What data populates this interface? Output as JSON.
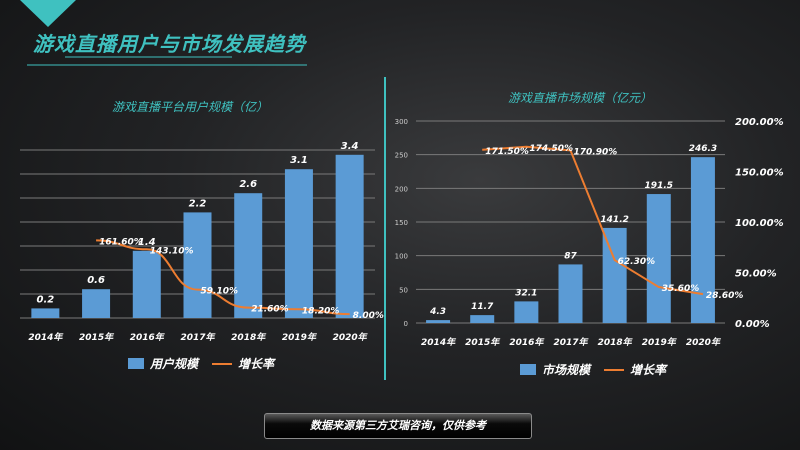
{
  "header": {
    "title": "游戏直播用户与市场发展趋势"
  },
  "footer": {
    "note": "数据来源第三方艾瑞咨询，仅供参考"
  },
  "colors": {
    "accent": "#3fc1c0",
    "bar": "#5b9bd5",
    "line": "#ed7d31"
  },
  "chart_data": [
    {
      "type": "bar",
      "title": "游戏直播平台用户规模（亿）",
      "categories": [
        "2014年",
        "2015年",
        "2016年",
        "2017年",
        "2018年",
        "2019年",
        "2020年"
      ],
      "series": [
        {
          "name": "用户规模",
          "type": "bar",
          "values": [
            0.2,
            0.6,
            1.4,
            2.2,
            2.6,
            3.1,
            3.4
          ],
          "labels": [
            "0.2",
            "0.6",
            "1.4",
            "2.2",
            "2.6",
            "3.1",
            "3.4"
          ]
        },
        {
          "name": "增长率",
          "type": "line",
          "axis": "secondary",
          "values": [
            null,
            161.6,
            143.1,
            59.1,
            21.6,
            18.2,
            8.0
          ],
          "labels": [
            "",
            "161.60%",
            "143.10%",
            "59.10%",
            "21.60%",
            "18.20%",
            "8.00%"
          ]
        }
      ],
      "ylim": [
        0,
        3.5
      ],
      "y2lim": [
        0,
        350
      ],
      "grid": true,
      "legend": "bottom"
    },
    {
      "type": "bar",
      "title": "游戏直播市场规模（亿元）",
      "categories": [
        "2014年",
        "2015年",
        "2016年",
        "2017年",
        "2018年",
        "2019年",
        "2020年"
      ],
      "series": [
        {
          "name": "市场规模",
          "type": "bar",
          "values": [
            4.3,
            11.7,
            32.1,
            87,
            141.2,
            191.5,
            246.3
          ],
          "labels": [
            "4.3",
            "11.7",
            "32.1",
            "87",
            "141.2",
            "191.5",
            "246.3"
          ]
        },
        {
          "name": "增长率",
          "type": "line",
          "axis": "secondary",
          "values": [
            null,
            171.5,
            174.5,
            170.9,
            62.3,
            35.6,
            28.6
          ],
          "labels": [
            "",
            "171.50%",
            "174.50%",
            "170.90%",
            "62.30%",
            "35.60%",
            "28.60%"
          ]
        }
      ],
      "ylim": [
        0,
        300
      ],
      "yticks": [
        "0",
        "50",
        "100",
        "150",
        "200",
        "250",
        "300"
      ],
      "y2lim": [
        0,
        200
      ],
      "y2ticks": [
        "0.00%",
        "50.00%",
        "100.00%",
        "150.00%",
        "200.00%"
      ],
      "grid": true,
      "legend": "bottom"
    }
  ]
}
